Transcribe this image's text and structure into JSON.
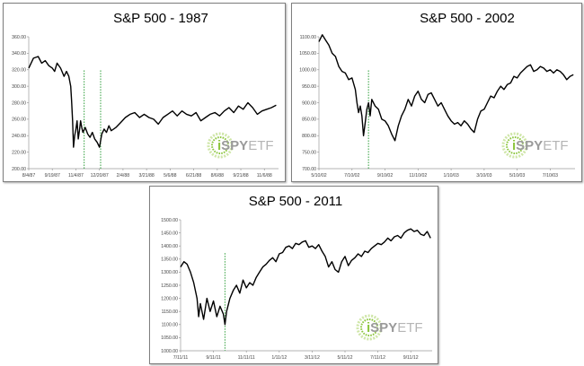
{
  "logo": {
    "i": "i",
    "spy": "SPY",
    "etf": "ETF",
    "accent": "#8dc63f",
    "gray": "#9a9a9a"
  },
  "chart_data": [
    {
      "type": "line",
      "title": "S&P 500 - 1987",
      "x_ticks": [
        "8/4/87",
        "9/19/87",
        "11/4/87",
        "12/20/87",
        "2/4/88",
        "3/21/88",
        "5/6/88",
        "6/21/88",
        "8/6/88",
        "9/21/88",
        "11/6/88"
      ],
      "y_ticks": [
        "200.00",
        "220.00",
        "240.00",
        "260.00",
        "280.00",
        "300.00",
        "320.00",
        "340.00",
        "360.00"
      ],
      "ylim": [
        200,
        360
      ],
      "x_range": [
        0,
        10.6
      ],
      "markers": [
        2.35,
        3.05
      ],
      "series": [
        {
          "x": [
            0,
            0.2,
            0.4,
            0.55,
            0.7,
            0.85,
            1.0,
            1.1,
            1.2,
            1.35,
            1.5,
            1.6,
            1.7,
            1.78,
            1.82,
            1.86,
            1.9,
            1.95,
            2.0,
            2.05,
            2.1,
            2.15,
            2.2,
            2.25,
            2.3,
            2.4,
            2.5,
            2.6,
            2.7,
            2.8,
            2.9,
            3.0,
            3.05,
            3.1,
            3.2,
            3.3,
            3.4,
            3.5,
            3.7,
            3.9,
            4.1,
            4.3,
            4.5,
            4.7,
            4.9,
            5.1,
            5.3,
            5.5,
            5.7,
            5.9,
            6.1,
            6.3,
            6.5,
            6.7,
            6.9,
            7.1,
            7.3,
            7.5,
            7.7,
            7.9,
            8.1,
            8.3,
            8.5,
            8.7,
            8.9,
            9.1,
            9.3,
            9.5,
            9.7,
            9.9,
            10.1,
            10.3,
            10.5
          ],
          "values": [
            322,
            334,
            336,
            328,
            331,
            325,
            322,
            318,
            328,
            322,
            312,
            318,
            312,
            300,
            282,
            258,
            226,
            240,
            248,
            258,
            236,
            246,
            258,
            250,
            244,
            250,
            242,
            238,
            244,
            236,
            232,
            226,
            234,
            242,
            248,
            244,
            252,
            246,
            250,
            256,
            262,
            266,
            268,
            262,
            266,
            262,
            260,
            254,
            262,
            266,
            270,
            264,
            270,
            266,
            264,
            268,
            258,
            262,
            266,
            268,
            264,
            270,
            274,
            268,
            276,
            272,
            280,
            274,
            266,
            270,
            272,
            274,
            277
          ]
        }
      ]
    },
    {
      "type": "line",
      "title": "S&P 500 - 2002",
      "x_ticks": [
        "5/10/02",
        "7/10/02",
        "9/10/02",
        "11/10/02",
        "1/10/03",
        "3/10/03",
        "5/10/03",
        "7/10/03"
      ],
      "y_ticks": [
        "700.00",
        "750.00",
        "800.00",
        "850.00",
        "900.00",
        "950.00",
        "1000.00",
        "1050.00",
        "1100.00"
      ],
      "ylim": [
        700,
        1100
      ],
      "x_range": [
        0,
        7.75
      ],
      "markers": [
        1.5
      ],
      "series": [
        {
          "x": [
            0,
            0.1,
            0.2,
            0.3,
            0.4,
            0.5,
            0.6,
            0.7,
            0.8,
            0.9,
            1.0,
            1.1,
            1.15,
            1.2,
            1.25,
            1.3,
            1.35,
            1.4,
            1.45,
            1.5,
            1.55,
            1.6,
            1.7,
            1.8,
            1.9,
            2.0,
            2.1,
            2.2,
            2.3,
            2.4,
            2.5,
            2.6,
            2.7,
            2.8,
            2.9,
            3.0,
            3.1,
            3.2,
            3.3,
            3.4,
            3.5,
            3.6,
            3.7,
            3.8,
            3.9,
            4.0,
            4.1,
            4.2,
            4.3,
            4.4,
            4.5,
            4.6,
            4.7,
            4.8,
            4.9,
            5.0,
            5.1,
            5.2,
            5.3,
            5.4,
            5.5,
            5.6,
            5.7,
            5.8,
            5.9,
            6.0,
            6.1,
            6.2,
            6.3,
            6.4,
            6.5,
            6.6,
            6.7,
            6.8,
            6.9,
            7.0,
            7.1,
            7.2,
            7.3,
            7.4,
            7.5,
            7.6,
            7.7
          ],
          "values": [
            1085,
            1106,
            1090,
            1075,
            1050,
            1040,
            1010,
            995,
            990,
            970,
            975,
            940,
            900,
            870,
            890,
            860,
            800,
            840,
            880,
            900,
            860,
            910,
            890,
            880,
            850,
            845,
            830,
            805,
            785,
            830,
            860,
            880,
            910,
            890,
            920,
            935,
            910,
            900,
            925,
            930,
            910,
            890,
            900,
            880,
            860,
            845,
            835,
            840,
            830,
            845,
            835,
            820,
            810,
            850,
            875,
            880,
            900,
            920,
            915,
            935,
            950,
            940,
            955,
            960,
            980,
            975,
            990,
            1000,
            1010,
            1015,
            995,
            1000,
            1010,
            1005,
            995,
            1000,
            990,
            1000,
            995,
            985,
            970,
            980,
            985
          ]
        }
      ]
    },
    {
      "type": "line",
      "title": "S&P 500 - 2011",
      "x_ticks": [
        "7/11/11",
        "9/11/11",
        "11/11/11",
        "1/11/12",
        "3/11/12",
        "5/11/12",
        "7/11/12",
        "9/11/12"
      ],
      "y_ticks": [
        "1000.00",
        "1050.00",
        "1100.00",
        "1150.00",
        "1200.00",
        "1250.00",
        "1300.00",
        "1350.00",
        "1400.00",
        "1450.00",
        "1500.00"
      ],
      "ylim": [
        1000,
        1500
      ],
      "x_range": [
        0,
        7.65
      ],
      "markers": [
        1.35
      ],
      "series": [
        {
          "x": [
            0,
            0.1,
            0.2,
            0.3,
            0.4,
            0.5,
            0.55,
            0.6,
            0.7,
            0.8,
            0.9,
            1.0,
            1.1,
            1.2,
            1.3,
            1.35,
            1.4,
            1.5,
            1.6,
            1.7,
            1.8,
            1.9,
            2.0,
            2.1,
            2.2,
            2.3,
            2.4,
            2.5,
            2.6,
            2.7,
            2.8,
            2.9,
            3.0,
            3.1,
            3.2,
            3.3,
            3.4,
            3.5,
            3.6,
            3.7,
            3.8,
            3.9,
            4.0,
            4.1,
            4.2,
            4.3,
            4.4,
            4.5,
            4.6,
            4.7,
            4.8,
            4.9,
            5.0,
            5.1,
            5.2,
            5.3,
            5.4,
            5.5,
            5.6,
            5.7,
            5.8,
            5.9,
            6.0,
            6.1,
            6.2,
            6.3,
            6.4,
            6.5,
            6.6,
            6.7,
            6.8,
            6.9,
            7.0,
            7.1,
            7.2,
            7.3,
            7.4,
            7.5,
            7.6
          ],
          "values": [
            1320,
            1340,
            1330,
            1300,
            1260,
            1200,
            1130,
            1180,
            1120,
            1200,
            1150,
            1190,
            1130,
            1170,
            1140,
            1100,
            1150,
            1200,
            1230,
            1250,
            1220,
            1270,
            1240,
            1260,
            1250,
            1280,
            1300,
            1320,
            1330,
            1345,
            1355,
            1340,
            1370,
            1375,
            1395,
            1400,
            1390,
            1410,
            1405,
            1415,
            1420,
            1395,
            1400,
            1390,
            1405,
            1380,
            1360,
            1320,
            1340,
            1310,
            1300,
            1340,
            1360,
            1325,
            1345,
            1355,
            1370,
            1360,
            1380,
            1375,
            1390,
            1400,
            1410,
            1405,
            1415,
            1430,
            1420,
            1435,
            1440,
            1430,
            1450,
            1460,
            1465,
            1455,
            1460,
            1445,
            1440,
            1455,
            1430
          ]
        }
      ]
    }
  ]
}
